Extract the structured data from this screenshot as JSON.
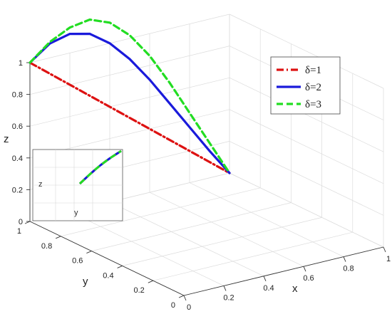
{
  "chart_data": {
    "type": "line",
    "projection": "3d",
    "xlabel": "x",
    "ylabel": "y",
    "zlabel": "z",
    "xlim": [
      0,
      1
    ],
    "ylim": [
      0,
      1
    ],
    "zlim": [
      0,
      1
    ],
    "xticks": [
      "0",
      "0.2",
      "0.4",
      "0.6",
      "0.8",
      "1"
    ],
    "yticks": [
      "0",
      "0.2",
      "0.4",
      "0.6",
      "0.8",
      "1"
    ],
    "zticks": [
      "0",
      "0.2",
      "0.4",
      "0.6",
      "0.8",
      "1"
    ],
    "grid": true,
    "legend_position": "top-right",
    "series": [
      {
        "name": "δ=1",
        "color": "#dd1111",
        "style": "dash-dot",
        "x": [
          0,
          0.1,
          0.2,
          0.3,
          0.4,
          0.5,
          0.6,
          0.7,
          0.8,
          0.9,
          1.0
        ],
        "y": [
          1,
          1,
          1,
          1,
          1,
          1,
          1,
          1,
          1,
          1,
          1
        ],
        "z": [
          1,
          0.9,
          0.8,
          0.7,
          0.6,
          0.5,
          0.4,
          0.3,
          0.2,
          0.1,
          0
        ]
      },
      {
        "name": "δ=2",
        "color": "#1a1adb",
        "style": "solid",
        "x": [
          0,
          0.1,
          0.2,
          0.3,
          0.4,
          0.5,
          0.6,
          0.7,
          0.8,
          0.9,
          1.0
        ],
        "y": [
          1,
          1,
          1,
          1,
          1,
          1,
          1,
          1,
          1,
          1,
          1
        ],
        "z": [
          1,
          1.09,
          1.12,
          1.09,
          1.0,
          0.87,
          0.71,
          0.53,
          0.35,
          0.17,
          0
        ]
      },
      {
        "name": "δ=3",
        "color": "#22dd22",
        "style": "dashed",
        "x": [
          0,
          0.1,
          0.2,
          0.3,
          0.4,
          0.5,
          0.6,
          0.7,
          0.8,
          0.9,
          1.0
        ],
        "y": [
          1,
          1,
          1,
          1,
          1,
          1,
          1,
          1,
          1,
          1,
          1
        ],
        "z": [
          1,
          1.1,
          1.16,
          1.18,
          1.13,
          1.02,
          0.86,
          0.66,
          0.44,
          0.22,
          0
        ]
      }
    ],
    "inset": {
      "ylabel": "y",
      "zlabel": "z"
    }
  }
}
